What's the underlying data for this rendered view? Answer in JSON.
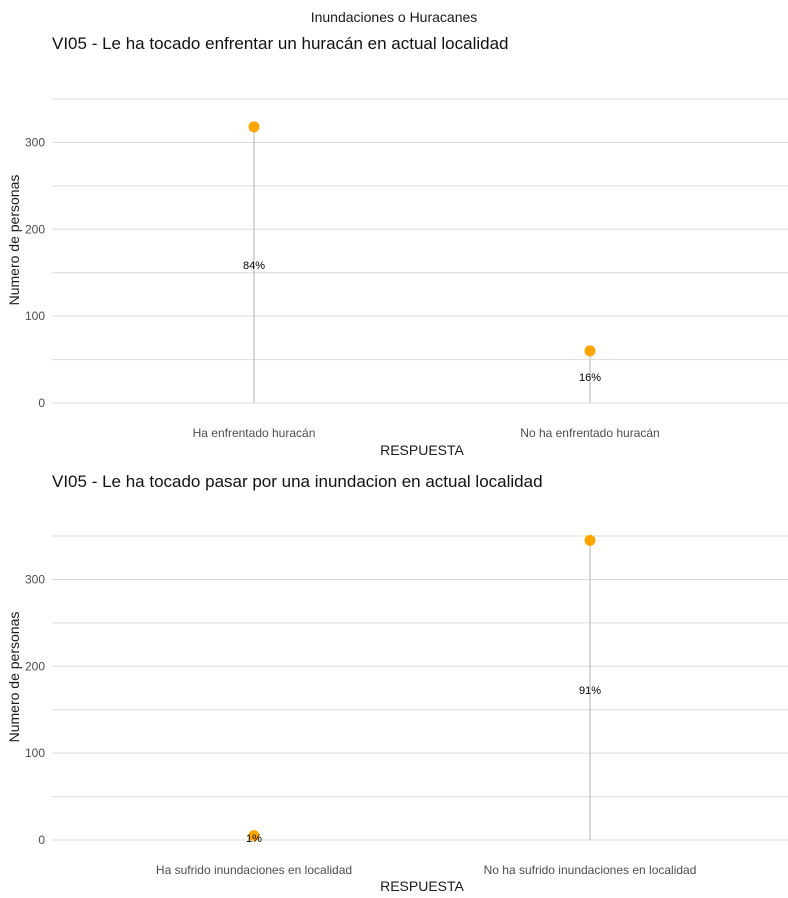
{
  "figure_title": "Inundaciones o Huracanes",
  "chart_data": [
    {
      "type": "lollipop",
      "title": "VI05 - Le ha tocado enfrentar un huracán en actual localidad",
      "xlabel": "RESPUESTA",
      "ylabel": "Numero de personas",
      "categories": [
        "Ha enfrentado huracán",
        "No ha enfrentado huracán"
      ],
      "values": [
        318,
        60
      ],
      "labels": [
        "84%",
        "16%"
      ],
      "yticks": [
        "0",
        "100",
        "200",
        "300"
      ],
      "ylim": [
        0,
        350
      ],
      "point_color": "#FFA500",
      "grid": true
    },
    {
      "type": "lollipop",
      "title": "VI05 - Le ha tocado pasar por una inundacion en actual localidad",
      "xlabel": "RESPUESTA",
      "ylabel": "Numero de personas",
      "categories": [
        "Ha sufrido inundaciones en localidad",
        "No ha sufrido inundaciones en localidad"
      ],
      "values": [
        5,
        345
      ],
      "labels": [
        "1%",
        "91%"
      ],
      "yticks": [
        "0",
        "100",
        "200",
        "300"
      ],
      "ylim": [
        0,
        350
      ],
      "point_color": "#FFA500",
      "grid": true
    }
  ]
}
